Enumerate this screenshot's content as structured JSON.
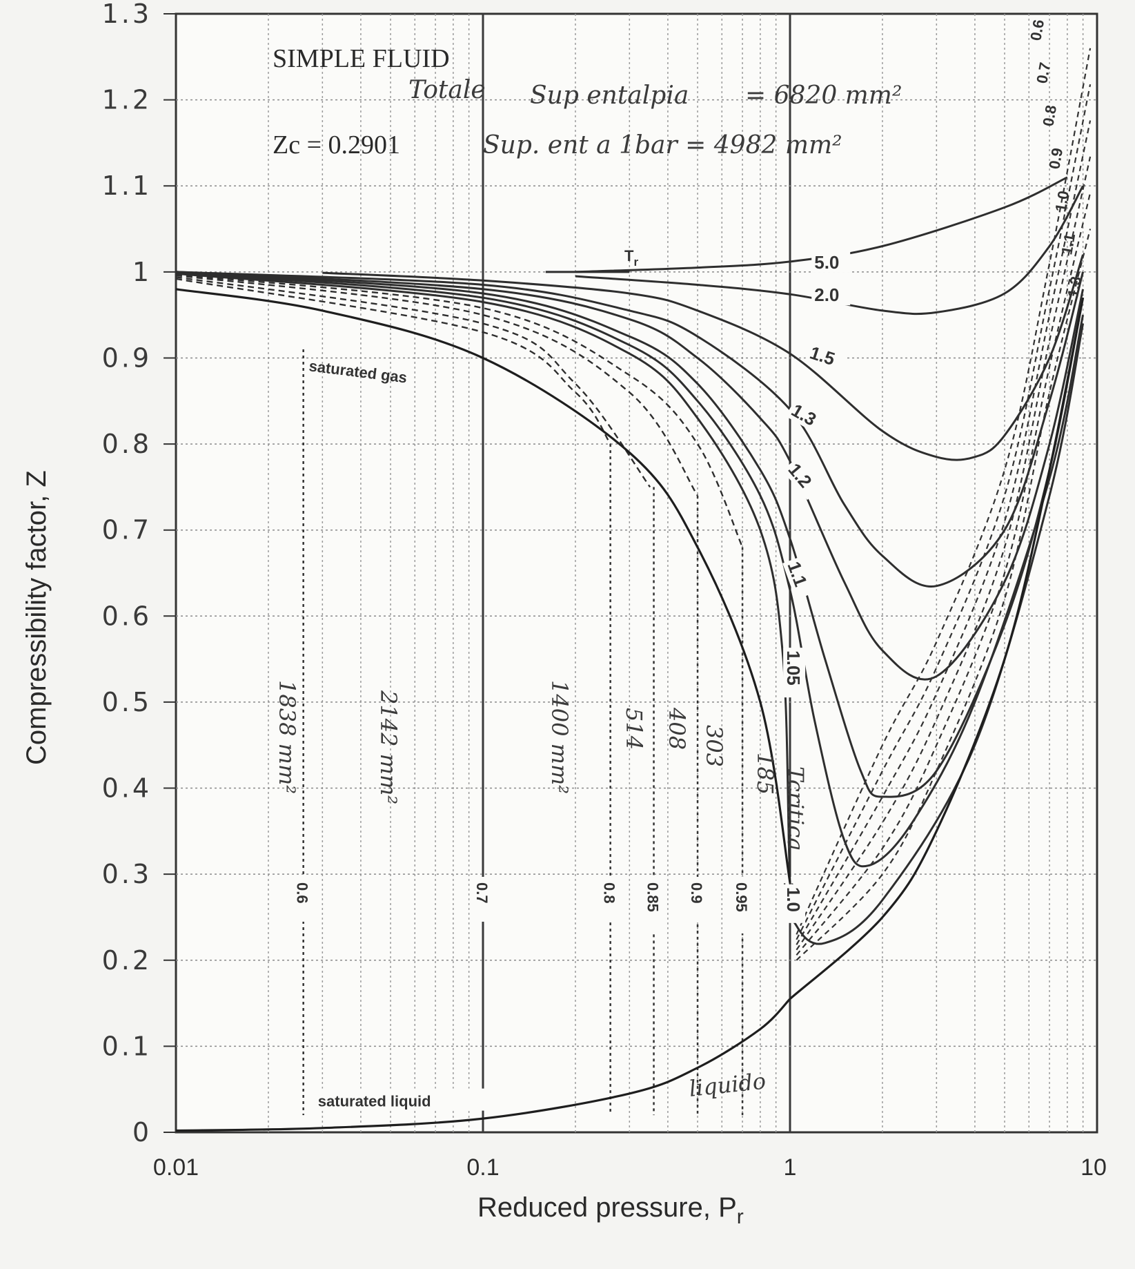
{
  "chart_data": {
    "type": "line",
    "title": "SIMPLE FLUID",
    "subtitle": "Zc = 0.2901",
    "xlabel": "Reduced pressure, P",
    "xlabel_sub": "r",
    "ylabel": "Compressibility factor, Z",
    "x_scale": "log",
    "xlim": [
      0.01,
      10
    ],
    "ylim": [
      0,
      1.3
    ],
    "x_ticks": [
      "0.01",
      "0.1",
      "1",
      "10"
    ],
    "y_ticks": [
      "0",
      "0.1",
      "0.2",
      "0.3",
      "0.4",
      "0.5",
      "0.6",
      "0.7",
      "0.8",
      "0.9",
      "1",
      "1.1",
      "1.2",
      "1.3"
    ],
    "grid": true,
    "tr_axis_label": "T",
    "tr_axis_sub": "r",
    "solid_series": [
      {
        "name": "5.0",
        "x": [
          0.2,
          0.5,
          1,
          2,
          5,
          8
        ],
        "y": [
          1.0,
          1.005,
          1.012,
          1.03,
          1.075,
          1.11
        ]
      },
      {
        "name": "2.0",
        "x": [
          0.2,
          0.5,
          1,
          2,
          3,
          5,
          7,
          9
        ],
        "y": [
          0.995,
          0.985,
          0.974,
          0.955,
          0.953,
          0.975,
          1.03,
          1.1
        ]
      },
      {
        "name": "1.5",
        "x": [
          0.03,
          0.1,
          0.3,
          0.5,
          1,
          2,
          3,
          4,
          5,
          7,
          9
        ],
        "y": [
          0.999,
          0.99,
          0.975,
          0.955,
          0.905,
          0.815,
          0.785,
          0.785,
          0.81,
          0.9,
          1.02
        ]
      },
      {
        "name": "1.3",
        "x": [
          0.01,
          0.1,
          0.3,
          0.5,
          1,
          1.5,
          2,
          3,
          5,
          7,
          9
        ],
        "y": [
          1.0,
          0.985,
          0.955,
          0.925,
          0.84,
          0.73,
          0.67,
          0.635,
          0.7,
          0.85,
          1.0
        ]
      },
      {
        "name": "1.2",
        "x": [
          0.01,
          0.1,
          0.3,
          0.5,
          0.8,
          1,
          1.5,
          2,
          3,
          5,
          7,
          9
        ],
        "y": [
          1.0,
          0.98,
          0.945,
          0.9,
          0.83,
          0.78,
          0.64,
          0.56,
          0.53,
          0.64,
          0.8,
          0.98
        ]
      },
      {
        "name": "1.1",
        "x": [
          0.01,
          0.1,
          0.3,
          0.5,
          0.8,
          1,
          1.3,
          1.7,
          2,
          3,
          5,
          7,
          9
        ],
        "y": [
          0.999,
          0.975,
          0.925,
          0.87,
          0.77,
          0.69,
          0.55,
          0.42,
          0.39,
          0.42,
          0.59,
          0.77,
          0.97
        ]
      },
      {
        "name": "1.05",
        "x": [
          0.01,
          0.1,
          0.3,
          0.5,
          0.8,
          1,
          1.2,
          1.5,
          1.8,
          2.5,
          4,
          7,
          9
        ],
        "y": [
          0.999,
          0.97,
          0.915,
          0.85,
          0.74,
          0.63,
          0.48,
          0.34,
          0.31,
          0.36,
          0.5,
          0.76,
          0.95
        ]
      },
      {
        "name": "1.0",
        "x": [
          0.01,
          0.1,
          0.3,
          0.5,
          0.8,
          0.95,
          1,
          1.05,
          1.3,
          2,
          4,
          7,
          9
        ],
        "y": [
          0.998,
          0.965,
          0.905,
          0.83,
          0.7,
          0.55,
          0.29,
          0.24,
          0.22,
          0.27,
          0.45,
          0.74,
          0.94
        ]
      }
    ],
    "dashed_series": [
      {
        "name": "0.95",
        "x": [
          0.01,
          0.1,
          0.3,
          0.5,
          0.7
        ],
        "y": [
          0.997,
          0.958,
          0.88,
          0.8,
          0.68
        ]
      },
      {
        "name": "0.9",
        "x": [
          0.01,
          0.1,
          0.3,
          0.5
        ],
        "y": [
          0.996,
          0.95,
          0.86,
          0.74
        ]
      },
      {
        "name": "0.85",
        "x": [
          0.01,
          0.1,
          0.2,
          0.35
        ],
        "y": [
          0.994,
          0.94,
          0.87,
          0.75
        ]
      },
      {
        "name": "0.8",
        "x": [
          0.01,
          0.1,
          0.2,
          0.26
        ],
        "y": [
          0.992,
          0.93,
          0.86,
          0.8
        ]
      }
    ],
    "saturated_gas": {
      "label": "saturated gas",
      "x": [
        0.01,
        0.03,
        0.1,
        0.3,
        0.5,
        0.8,
        1
      ],
      "y": [
        0.98,
        0.955,
        0.9,
        0.79,
        0.68,
        0.5,
        0.29
      ]
    },
    "saturated_liquid": {
      "label": "saturated liquid",
      "x": [
        0.01,
        0.03,
        0.1,
        0.3,
        0.5,
        0.8,
        1
      ],
      "y": [
        0.002,
        0.005,
        0.016,
        0.045,
        0.075,
        0.12,
        0.155
      ]
    },
    "compressed_liquid": {
      "x": [
        1,
        2,
        3,
        5,
        7,
        9
      ],
      "y": [
        0.155,
        0.25,
        0.35,
        0.55,
        0.77,
        0.97
      ]
    },
    "isotherm_verticals": [
      {
        "label": "0.6",
        "x": 0.026,
        "top": 0.91
      },
      {
        "label": "0.7",
        "x": 0.1,
        "top": 1.3
      },
      {
        "label": "0.8",
        "x": 0.26,
        "top": 0.8
      },
      {
        "label": "0.85",
        "x": 0.36,
        "top": 0.75
      },
      {
        "label": "0.9",
        "x": 0.5,
        "top": 0.74
      },
      {
        "label": "0.95",
        "x": 0.7,
        "top": 0.68
      },
      {
        "label": "1.0",
        "x": 1,
        "top": 1.3
      }
    ],
    "right_edge_labels": [
      "0.6",
      "0.7",
      "0.8",
      "0.9",
      "1.0",
      "1.1",
      "1.3"
    ],
    "handwritten": {
      "line1_a": "Totale",
      "line1_b": "Sup entalpia",
      "line1_c": "= 6820 mm²",
      "line2": "Sup. ent a 1bar = 4982 mm²",
      "notes": [
        "1838 mm²",
        "2142 mm²",
        "1400 mm²",
        "514",
        "408",
        "303",
        "185",
        "Tcritica",
        "liquido"
      ]
    }
  }
}
